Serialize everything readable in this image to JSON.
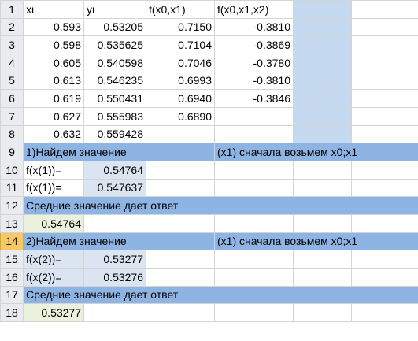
{
  "rows": [
    {
      "n": "1",
      "a": "xi",
      "b": "yi",
      "c": "f(x0,x1)",
      "d": "f(x0,x1,x2)"
    },
    {
      "n": "2",
      "a": "0.593",
      "b": "0.53205",
      "c": "0.7150",
      "d": "-0.3810"
    },
    {
      "n": "3",
      "a": "0.598",
      "b": "0.535625",
      "c": "0.7104",
      "d": "-0.3869"
    },
    {
      "n": "4",
      "a": "0.605",
      "b": "0.540598",
      "c": "0.7046",
      "d": "-0.3780"
    },
    {
      "n": "5",
      "a": "0.613",
      "b": "0.546235",
      "c": "0.6993",
      "d": "-0.3810"
    },
    {
      "n": "6",
      "a": "0.619",
      "b": "0.550431",
      "c": "0.6940",
      "d": "-0.3846"
    },
    {
      "n": "7",
      "a": "0.627",
      "b": "0.555983",
      "c": "0.6890",
      "d": ""
    },
    {
      "n": "8",
      "a": "0.632",
      "b": "0.559428",
      "c": "",
      "d": ""
    },
    {
      "n": "9",
      "a": "1)Найдем значение",
      "b": "",
      "c": "",
      "d": "(x1) сначала возьмем x0;x1"
    },
    {
      "n": "10",
      "a": "f(x(1))=",
      "b": "0.54764",
      "c": "",
      "d": ""
    },
    {
      "n": "11",
      "a": "f(x(1))=",
      "b": "0.547637",
      "c": "",
      "d": ""
    },
    {
      "n": "12",
      "a": "Средние значение дает ответ",
      "b": "",
      "c": "",
      "d": ""
    },
    {
      "n": "13",
      "a": "0.54764",
      "b": "",
      "c": "",
      "d": ""
    },
    {
      "n": "14",
      "a": "2)Найдем значение",
      "b": "",
      "c": "",
      "d": "(x1) сначала возьмем x0;x1"
    },
    {
      "n": "15",
      "a": "f(x(2))=",
      "b": "0.53277",
      "c": "",
      "d": ""
    },
    {
      "n": "16",
      "a": "f(x(2))=",
      "b": "0.53276",
      "c": "",
      "d": ""
    },
    {
      "n": "17",
      "a": "Средние значение дает ответ",
      "b": "",
      "c": "",
      "d": ""
    },
    {
      "n": "18",
      "a": "0.53277",
      "b": "",
      "c": "",
      "d": ""
    }
  ],
  "active_row": "14",
  "colors": {
    "band": "#8eb4e3",
    "column_e": "#c5d9f1",
    "selected": "#dbe5f1",
    "answer": "#eaf1dd",
    "active_header": "#f6c965"
  }
}
